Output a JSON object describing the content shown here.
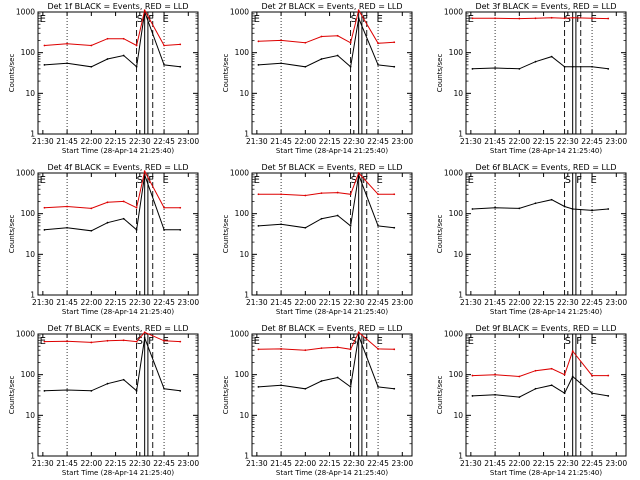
{
  "chart_data": [
    {
      "type": "line",
      "title": "Det 1f BLACK = Events, RED = LLD",
      "xlabel": "Start Time (28-Apr-14 21:25:40)",
      "ylabel": "Counts/sec",
      "y_scale": "log",
      "ylim": [
        1,
        1000
      ],
      "y_ticks": [
        "1",
        "10",
        "100",
        "1000"
      ],
      "x_ticks": [
        "21:30",
        "21:45",
        "22:00",
        "22:15",
        "22:30",
        "22:45",
        "23:00"
      ],
      "markers": [
        "E",
        "S",
        "F",
        "E"
      ],
      "series": [
        {
          "name": "BLACK = Events",
          "color": "#000000",
          "x": [
            "21:31",
            "21:45",
            "22:00",
            "22:10",
            "22:20",
            "22:28",
            "22:33",
            "22:45",
            "22:55"
          ],
          "y": [
            50,
            55,
            45,
            70,
            85,
            45,
            1000,
            50,
            45
          ]
        },
        {
          "name": "RED = LLD",
          "color": "#dd0000",
          "x": [
            "21:31",
            "21:45",
            "22:00",
            "22:10",
            "22:20",
            "22:28",
            "22:33",
            "22:45",
            "22:55"
          ],
          "y": [
            150,
            165,
            150,
            220,
            220,
            150,
            1100,
            150,
            160
          ]
        }
      ]
    },
    {
      "type": "line",
      "title": "Det 2f BLACK = Events, RED = LLD",
      "xlabel": "Start Time (28-Apr-14 21:25:40)",
      "ylabel": "Counts/sec",
      "y_scale": "log",
      "ylim": [
        1,
        1000
      ],
      "y_ticks": [
        "1",
        "10",
        "100",
        "1000"
      ],
      "x_ticks": [
        "21:30",
        "21:45",
        "22:00",
        "22:15",
        "22:30",
        "22:45",
        "23:00"
      ],
      "markers": [
        "E",
        "S",
        "F",
        "E"
      ],
      "series": [
        {
          "name": "BLACK = Events",
          "color": "#000000",
          "x": [
            "21:31",
            "21:45",
            "22:00",
            "22:10",
            "22:20",
            "22:28",
            "22:33",
            "22:45",
            "22:55"
          ],
          "y": [
            50,
            55,
            45,
            70,
            85,
            45,
            700,
            50,
            45
          ]
        },
        {
          "name": "RED = LLD",
          "color": "#dd0000",
          "x": [
            "21:31",
            "21:45",
            "22:00",
            "22:10",
            "22:20",
            "22:28",
            "22:33",
            "22:45",
            "22:55"
          ],
          "y": [
            190,
            200,
            175,
            250,
            260,
            175,
            1100,
            170,
            180
          ]
        }
      ]
    },
    {
      "type": "line",
      "title": "Det 3f BLACK = Events, RED = LLD",
      "xlabel": "Start Time (28-Apr-14 21:25:40)",
      "ylabel": "Counts/sec",
      "y_scale": "log",
      "ylim": [
        1,
        1000
      ],
      "y_ticks": [
        "1",
        "10",
        "100",
        "1000"
      ],
      "x_ticks": [
        "21:30",
        "21:45",
        "22:00",
        "22:15",
        "22:30",
        "22:45",
        "23:00"
      ],
      "markers": [
        "E",
        "S",
        "F",
        "E"
      ],
      "series": [
        {
          "name": "BLACK = Events",
          "color": "#000000",
          "x": [
            "21:31",
            "21:45",
            "22:00",
            "22:10",
            "22:20",
            "22:28",
            "22:33",
            "22:45",
            "22:55"
          ],
          "y": [
            40,
            42,
            40,
            60,
            80,
            45,
            45,
            45,
            40
          ]
        },
        {
          "name": "RED = LLD",
          "color": "#dd0000",
          "x": [
            "21:31",
            "21:45",
            "22:00",
            "22:10",
            "22:20",
            "22:28",
            "22:33",
            "22:45",
            "22:55"
          ],
          "y": [
            700,
            700,
            690,
            700,
            720,
            700,
            720,
            700,
            690
          ]
        }
      ]
    },
    {
      "type": "line",
      "title": "Det 4f BLACK = Events, RED = LLD",
      "xlabel": "Start Time (28-Apr-14 21:25:40)",
      "ylabel": "Counts/sec",
      "y_scale": "log",
      "ylim": [
        1,
        1000
      ],
      "y_ticks": [
        "1",
        "10",
        "100",
        "1000"
      ],
      "x_ticks": [
        "21:30",
        "21:45",
        "22:00",
        "22:15",
        "22:30",
        "22:45",
        "23:00"
      ],
      "markers": [
        "E",
        "S",
        "F",
        "E"
      ],
      "series": [
        {
          "name": "BLACK = Events",
          "color": "#000000",
          "x": [
            "21:31",
            "21:45",
            "22:00",
            "22:10",
            "22:20",
            "22:28",
            "22:33",
            "22:45",
            "22:55"
          ],
          "y": [
            40,
            45,
            38,
            60,
            75,
            40,
            900,
            40,
            40
          ]
        },
        {
          "name": "RED = LLD",
          "color": "#dd0000",
          "x": [
            "21:31",
            "21:45",
            "22:00",
            "22:10",
            "22:20",
            "22:28",
            "22:33",
            "22:45",
            "22:55"
          ],
          "y": [
            140,
            150,
            135,
            190,
            200,
            140,
            1100,
            140,
            140
          ]
        }
      ]
    },
    {
      "type": "line",
      "title": "Det 5f BLACK = Events, RED = LLD",
      "xlabel": "Start Time (28-Apr-14 21:25:40)",
      "ylabel": "Counts/sec",
      "y_scale": "log",
      "ylim": [
        1,
        1000
      ],
      "y_ticks": [
        "1",
        "10",
        "100",
        "1000"
      ],
      "x_ticks": [
        "21:30",
        "21:45",
        "22:00",
        "22:15",
        "22:30",
        "22:45",
        "23:00"
      ],
      "markers": [
        "E",
        "S",
        "F",
        "E"
      ],
      "series": [
        {
          "name": "BLACK = Events",
          "color": "#000000",
          "x": [
            "21:31",
            "21:45",
            "22:00",
            "22:10",
            "22:20",
            "22:28",
            "22:33",
            "22:45",
            "22:55"
          ],
          "y": [
            50,
            55,
            45,
            75,
            90,
            50,
            900,
            50,
            45
          ]
        },
        {
          "name": "RED = LLD",
          "color": "#dd0000",
          "x": [
            "21:31",
            "21:45",
            "22:00",
            "22:10",
            "22:20",
            "22:28",
            "22:33",
            "22:45",
            "22:55"
          ],
          "y": [
            300,
            300,
            280,
            320,
            330,
            300,
            1000,
            300,
            300
          ]
        }
      ]
    },
    {
      "type": "line",
      "title": "Det 6f BLACK = Events, RED = LLD",
      "xlabel": "Start Time (28-Apr-14 21:25:40)",
      "ylabel": "Counts/sec",
      "y_scale": "log",
      "ylim": [
        1,
        1000
      ],
      "y_ticks": [
        "1",
        "10",
        "100",
        "1000"
      ],
      "x_ticks": [
        "21:30",
        "21:45",
        "22:00",
        "22:15",
        "22:30",
        "22:45",
        "23:00"
      ],
      "markers": [
        "E",
        "S",
        "F",
        "E"
      ],
      "series": [
        {
          "name": "BLACK = Events",
          "color": "#000000",
          "x": [
            "21:31",
            "21:45",
            "22:00",
            "22:10",
            "22:20",
            "22:28",
            "22:33",
            "22:45",
            "22:55"
          ],
          "y": [
            130,
            140,
            135,
            180,
            220,
            150,
            130,
            120,
            130
          ]
        }
      ]
    },
    {
      "type": "line",
      "title": "Det 7f BLACK = Events, RED = LLD",
      "xlabel": "Start Time (28-Apr-14 21:25:40)",
      "ylabel": "Counts/sec",
      "y_scale": "log",
      "ylim": [
        1,
        1000
      ],
      "y_ticks": [
        "1",
        "10",
        "100",
        "1000"
      ],
      "x_ticks": [
        "21:30",
        "21:45",
        "22:00",
        "22:15",
        "22:30",
        "22:45",
        "23:00"
      ],
      "markers": [
        "E",
        "S",
        "F",
        "E"
      ],
      "series": [
        {
          "name": "BLACK = Events",
          "color": "#000000",
          "x": [
            "21:31",
            "21:45",
            "22:00",
            "22:10",
            "22:20",
            "22:28",
            "22:33",
            "22:45",
            "22:55"
          ],
          "y": [
            40,
            42,
            40,
            60,
            75,
            40,
            800,
            45,
            40
          ]
        },
        {
          "name": "RED = LLD",
          "color": "#dd0000",
          "x": [
            "21:31",
            "21:45",
            "22:00",
            "22:10",
            "22:20",
            "22:28",
            "22:33",
            "22:45",
            "22:55"
          ],
          "y": [
            650,
            660,
            620,
            680,
            700,
            650,
            1100,
            680,
            650
          ]
        }
      ]
    },
    {
      "type": "line",
      "title": "Det 8f BLACK = Events, RED = LLD",
      "xlabel": "Start Time (28-Apr-14 21:25:40)",
      "ylabel": "Counts/sec",
      "y_scale": "log",
      "ylim": [
        1,
        1000
      ],
      "y_ticks": [
        "1",
        "10",
        "100",
        "1000"
      ],
      "x_ticks": [
        "21:30",
        "21:45",
        "22:00",
        "22:15",
        "22:30",
        "22:45",
        "23:00"
      ],
      "markers": [
        "E",
        "S",
        "F",
        "E"
      ],
      "series": [
        {
          "name": "BLACK = Events",
          "color": "#000000",
          "x": [
            "21:31",
            "21:45",
            "22:00",
            "22:10",
            "22:20",
            "22:28",
            "22:33",
            "22:45",
            "22:55"
          ],
          "y": [
            50,
            55,
            45,
            70,
            85,
            50,
            900,
            50,
            45
          ]
        },
        {
          "name": "RED = LLD",
          "color": "#dd0000",
          "x": [
            "21:31",
            "21:45",
            "22:00",
            "22:10",
            "22:20",
            "22:28",
            "22:33",
            "22:45",
            "22:55"
          ],
          "y": [
            420,
            430,
            400,
            450,
            470,
            420,
            1100,
            430,
            420
          ]
        }
      ]
    },
    {
      "type": "line",
      "title": "Det 9f BLACK = Events, RED = LLD",
      "xlabel": "Start Time (28-Apr-14 21:25:40)",
      "ylabel": "Counts/sec",
      "y_scale": "log",
      "ylim": [
        1,
        1000
      ],
      "y_ticks": [
        "1",
        "10",
        "100",
        "1000"
      ],
      "x_ticks": [
        "21:30",
        "21:45",
        "22:00",
        "22:15",
        "22:30",
        "22:45",
        "23:00"
      ],
      "markers": [
        "E",
        "S",
        "F",
        "E"
      ],
      "series": [
        {
          "name": "BLACK = Events",
          "color": "#000000",
          "x": [
            "21:31",
            "21:45",
            "22:00",
            "22:10",
            "22:20",
            "22:28",
            "22:33",
            "22:45",
            "22:55"
          ],
          "y": [
            30,
            32,
            28,
            45,
            55,
            35,
            90,
            35,
            30
          ]
        },
        {
          "name": "RED = LLD",
          "color": "#dd0000",
          "x": [
            "21:31",
            "21:45",
            "22:00",
            "22:10",
            "22:20",
            "22:28",
            "22:33",
            "22:45",
            "22:55"
          ],
          "y": [
            95,
            100,
            90,
            125,
            140,
            100,
            380,
            95,
            95
          ]
        }
      ]
    }
  ]
}
